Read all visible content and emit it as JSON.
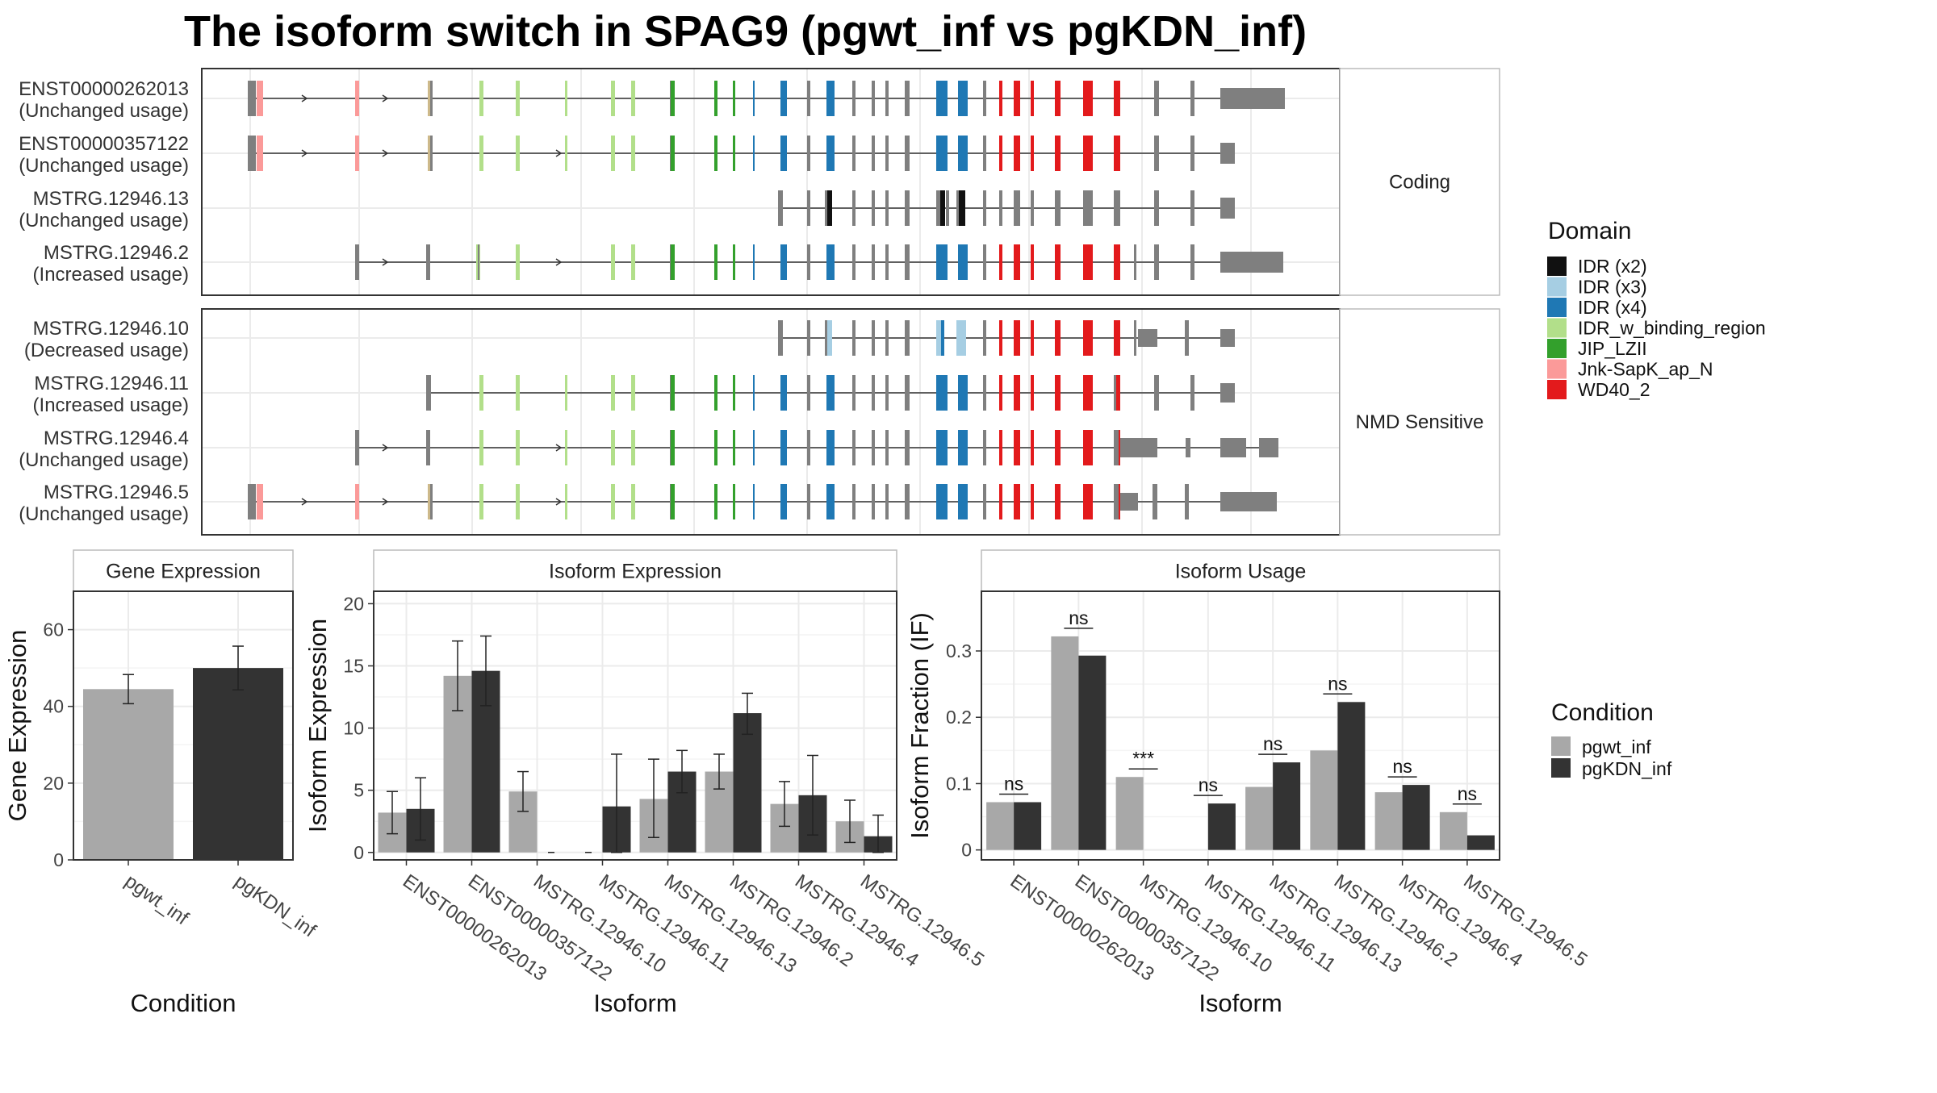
{
  "title": "The isoform switch in SPAG9 (pgwt_inf vs pgKDN_inf)",
  "facets": [
    "Coding",
    "NMD Sensitive"
  ],
  "isoforms": [
    {
      "name": "ENST00000262013",
      "usage": "(Unchanged usage)",
      "facet": 0
    },
    {
      "name": "ENST00000357122",
      "usage": "(Unchanged usage)",
      "facet": 0
    },
    {
      "name": "MSTRG.12946.13",
      "usage": "(Unchanged usage)",
      "facet": 0
    },
    {
      "name": "MSTRG.12946.2",
      "usage": "(Increased usage)",
      "facet": 0
    },
    {
      "name": "MSTRG.12946.10",
      "usage": "(Decreased usage)",
      "facet": 1
    },
    {
      "name": "MSTRG.12946.11",
      "usage": "(Increased usage)",
      "facet": 1
    },
    {
      "name": "MSTRG.12946.4",
      "usage": "(Unchanged usage)",
      "facet": 1
    },
    {
      "name": "MSTRG.12946.5",
      "usage": "(Unchanged usage)",
      "facet": 1
    }
  ],
  "domain_legend": {
    "title": "Domain",
    "items": [
      {
        "label": "IDR (x2)",
        "color": "#111111"
      },
      {
        "label": "IDR (x3)",
        "color": "#a6cee3"
      },
      {
        "label": "IDR (x4)",
        "color": "#1f78b4"
      },
      {
        "label": "IDR_w_binding_region",
        "color": "#b2df8a"
      },
      {
        "label": "JIP_LZII",
        "color": "#33a02c"
      },
      {
        "label": "Jnk-SapK_ap_N",
        "color": "#fb9a99"
      },
      {
        "label": "WD40_2",
        "color": "#e31a1c"
      }
    ]
  },
  "condition_legend": {
    "title": "Condition",
    "items": [
      {
        "label": "pgwt_inf",
        "color": "#a8a8a8"
      },
      {
        "label": "pgKDN_inf",
        "color": "#333333"
      }
    ]
  },
  "chart_data": [
    {
      "type": "bar",
      "title": "Gene Expression",
      "xlabel": "Condition",
      "ylabel": "Gene Expression",
      "categories": [
        "pgwt_inf",
        "pgKDN_inf"
      ],
      "values": [
        44.5,
        50.0
      ],
      "error": [
        [
          40.7,
          48.3
        ],
        [
          44.3,
          55.7
        ]
      ],
      "ylim": [
        0,
        70
      ],
      "yticks": [
        0,
        20,
        40,
        60
      ],
      "colors": [
        "#a8a8a8",
        "#333333"
      ]
    },
    {
      "type": "bar",
      "title": "Isoform Expression",
      "xlabel": "Isoform",
      "ylabel": "Isoform Expression",
      "categories": [
        "ENST00000262013",
        "ENST00000357122",
        "MSTRG.12946.10",
        "MSTRG.12946.11",
        "MSTRG.12946.13",
        "MSTRG.12946.2",
        "MSTRG.12946.4",
        "MSTRG.12946.5"
      ],
      "ylim": [
        -0.6,
        21
      ],
      "yticks": [
        0,
        5,
        10,
        15,
        20
      ],
      "series": [
        {
          "name": "pgwt_inf",
          "values": [
            3.2,
            14.2,
            4.9,
            0.0,
            4.3,
            6.5,
            3.9,
            2.5
          ],
          "error": [
            [
              1.5,
              4.9
            ],
            [
              11.4,
              17.0
            ],
            [
              3.3,
              6.5
            ],
            [
              0,
              0
            ],
            [
              1.2,
              7.5
            ],
            [
              5.1,
              7.9
            ],
            [
              2.1,
              5.7
            ],
            [
              0.8,
              4.2
            ]
          ]
        },
        {
          "name": "pgKDN_inf",
          "values": [
            3.5,
            14.6,
            0.0,
            3.7,
            6.5,
            11.2,
            4.6,
            1.3
          ],
          "error": [
            [
              1.0,
              6.0
            ],
            [
              11.8,
              17.4
            ],
            [
              0,
              0
            ],
            [
              0.0,
              7.9
            ],
            [
              4.8,
              8.2
            ],
            [
              9.5,
              12.8
            ],
            [
              1.4,
              7.8
            ],
            [
              0.0,
              3.0
            ]
          ]
        }
      ]
    },
    {
      "type": "bar",
      "title": "Isoform Usage",
      "xlabel": "Isoform",
      "ylabel": "Isoform Fraction (IF)",
      "categories": [
        "ENST00000262013",
        "ENST00000357122",
        "MSTRG.12946.10",
        "MSTRG.12946.11",
        "MSTRG.12946.13",
        "MSTRG.12946.2",
        "MSTRG.12946.4",
        "MSTRG.12946.5"
      ],
      "ylim": [
        -0.015,
        0.39
      ],
      "yticks": [
        0.0,
        0.1,
        0.2,
        0.3
      ],
      "significance": [
        "ns",
        "ns",
        "***",
        "ns",
        "ns",
        "ns",
        "ns",
        "ns"
      ],
      "series": [
        {
          "name": "pgwt_inf",
          "values": [
            0.072,
            0.322,
            0.11,
            0.0,
            0.095,
            0.15,
            0.087,
            0.057
          ]
        },
        {
          "name": "pgKDN_inf",
          "values": [
            0.072,
            0.293,
            0.0,
            0.07,
            0.132,
            0.223,
            0.098,
            0.022
          ]
        }
      ]
    }
  ]
}
